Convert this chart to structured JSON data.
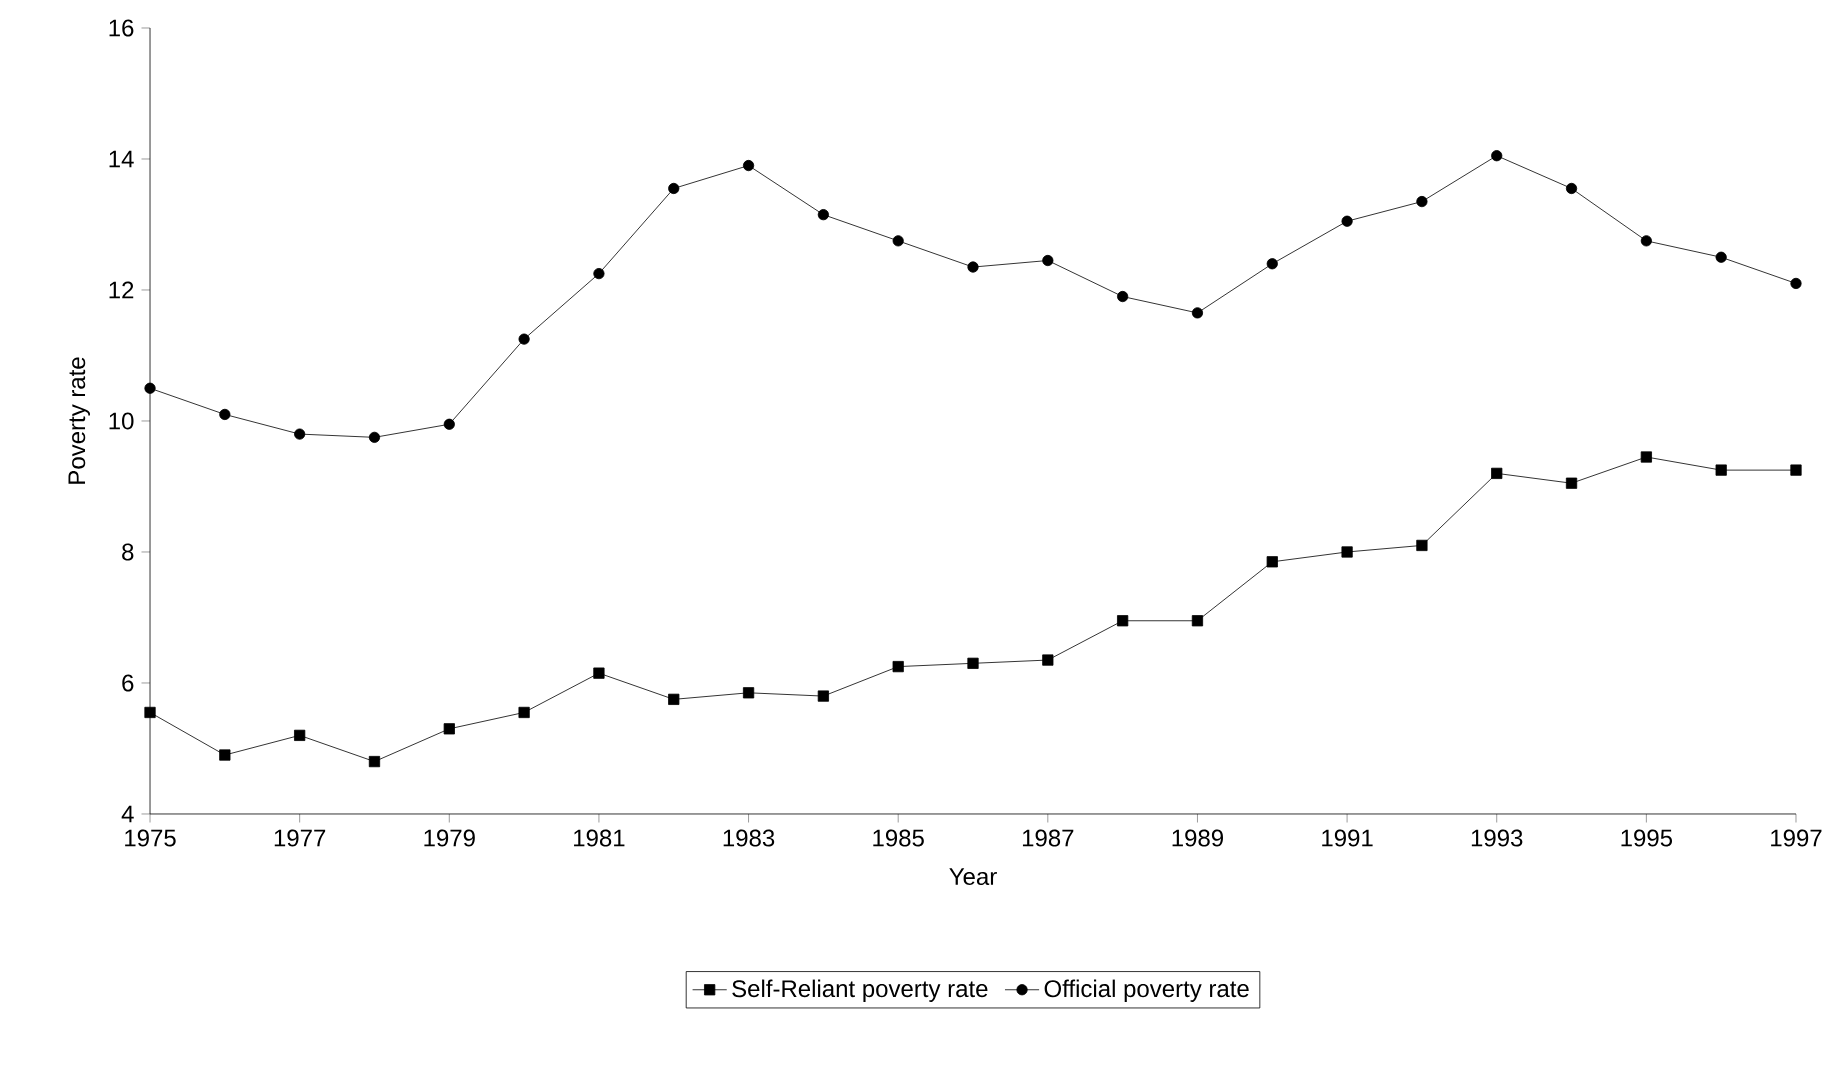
{
  "chart_data": {
    "type": "line",
    "xlabel": "Year",
    "ylabel": "Poverty rate",
    "x": [
      1975,
      1976,
      1977,
      1978,
      1979,
      1980,
      1981,
      1982,
      1983,
      1984,
      1985,
      1986,
      1987,
      1988,
      1989,
      1990,
      1991,
      1992,
      1993,
      1994,
      1995,
      1996,
      1997
    ],
    "series": [
      {
        "name": "Self-Reliant poverty rate",
        "color": "#000000",
        "marker": "square",
        "values": [
          5.55,
          4.9,
          5.2,
          4.8,
          5.3,
          5.55,
          6.15,
          5.75,
          5.85,
          5.8,
          6.25,
          6.3,
          6.35,
          6.95,
          6.95,
          7.85,
          8.0,
          8.1,
          9.2,
          9.05,
          9.45,
          9.25,
          9.25
        ]
      },
      {
        "name": "Official poverty rate",
        "color": "#000000",
        "marker": "circle",
        "values": [
          10.5,
          10.1,
          9.8,
          9.75,
          9.95,
          11.25,
          12.25,
          13.55,
          13.9,
          13.15,
          12.75,
          12.35,
          12.45,
          11.9,
          11.65,
          12.4,
          13.05,
          13.35,
          14.05,
          13.55,
          12.75,
          12.5,
          12.1
        ]
      }
    ],
    "xlim": [
      1975,
      1997
    ],
    "xticks": [
      1975,
      1977,
      1979,
      1981,
      1983,
      1985,
      1987,
      1989,
      1991,
      1993,
      1995,
      1997
    ],
    "ylim": [
      4,
      16
    ],
    "yticks": [
      4,
      6,
      8,
      10,
      12,
      14,
      16
    ],
    "grid": false,
    "legend": "bottom",
    "line_style": "solid"
  }
}
